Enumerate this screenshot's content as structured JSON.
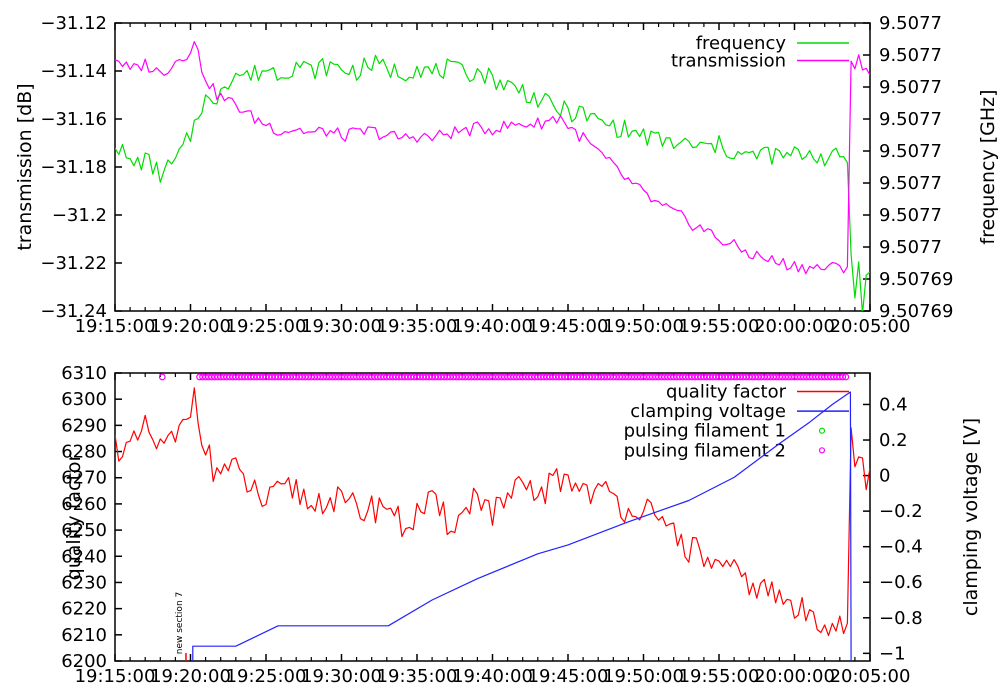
{
  "figure": {
    "background": "#ffffff"
  },
  "colors": {
    "frequency": "#00dd00",
    "transmission": "#ff00ff",
    "quality_factor": "#ff0000",
    "clamping_voltage": "#2222ff",
    "pulsing_filament_1": "#00dd00",
    "pulsing_filament_2": "#ff00ff",
    "axis": "#000000",
    "annotation_tick": "#ff0000"
  },
  "x_axis": {
    "tick_labels": [
      "19:15:00",
      "19:20:00",
      "19:25:00",
      "19:30:00",
      "19:35:00",
      "19:40:00",
      "19:45:00",
      "19:50:00",
      "19:55:00",
      "20:00:00",
      "20:05:00"
    ],
    "range_minutes": [
      0,
      50
    ],
    "major_tick_every_minutes": 5,
    "minor_tick_every_minutes": 1
  },
  "chart_data": [
    {
      "type": "line",
      "ylabel": "transmission [dB]",
      "y2label": "frequency [GHz]",
      "ylim": [
        -31.24,
        -31.12
      ],
      "ytick_labels": [
        "−31.12",
        "−31.14",
        "−31.16",
        "−31.18",
        "−31.2",
        "−31.22",
        "−31.24"
      ],
      "y2tick_labels": [
        "9.5077",
        "9.5077",
        "9.5077",
        "9.5077",
        "9.5077",
        "9.5077",
        "9.5077",
        "9.5077",
        "9.50769",
        "9.50769"
      ],
      "grid": false,
      "legend_position": "top-right-inside",
      "legend": [
        {
          "label": "frequency",
          "style": "line",
          "color": "#00dd00"
        },
        {
          "label": "transmission",
          "style": "line",
          "color": "#ff00ff"
        }
      ],
      "series": [
        {
          "name": "frequency",
          "color": "#00dd00",
          "axis": "y1",
          "note": "plotted against right frequency axis; anchor values given on the left dB scale position it occupies",
          "noise": 0.0042,
          "seed": 7,
          "anchors": [
            [
              0,
              -31.169
            ],
            [
              1,
              -31.179
            ],
            [
              2,
              -31.177
            ],
            [
              3,
              -31.183
            ],
            [
              4,
              -31.178
            ],
            [
              5,
              -31.167
            ],
            [
              5.5,
              -31.157
            ],
            [
              6,
              -31.151
            ],
            [
              6.5,
              -31.156
            ],
            [
              7,
              -31.146
            ],
            [
              8,
              -31.141
            ],
            [
              9,
              -31.142
            ],
            [
              10,
              -31.139
            ],
            [
              11,
              -31.141
            ],
            [
              12,
              -31.137
            ],
            [
              13,
              -31.14
            ],
            [
              14,
              -31.138
            ],
            [
              15,
              -31.139
            ],
            [
              16,
              -31.14
            ],
            [
              17,
              -31.137
            ],
            [
              18,
              -31.139
            ],
            [
              19,
              -31.141
            ],
            [
              20,
              -31.138
            ],
            [
              21,
              -31.141
            ],
            [
              22,
              -31.139
            ],
            [
              23,
              -31.141
            ],
            [
              24,
              -31.14
            ],
            [
              25,
              -31.143
            ],
            [
              26,
              -31.146
            ],
            [
              27,
              -31.148
            ],
            [
              28,
              -31.152
            ],
            [
              29,
              -31.155
            ],
            [
              30,
              -31.157
            ],
            [
              31,
              -31.158
            ],
            [
              32,
              -31.161
            ],
            [
              33,
              -31.163
            ],
            [
              34,
              -31.165
            ],
            [
              35,
              -31.167
            ],
            [
              36,
              -31.169
            ],
            [
              37,
              -31.17
            ],
            [
              38,
              -31.171
            ],
            [
              39,
              -31.172
            ],
            [
              40,
              -31.171
            ],
            [
              41,
              -31.174
            ],
            [
              42,
              -31.176
            ],
            [
              43,
              -31.174
            ],
            [
              44,
              -31.176
            ],
            [
              45,
              -31.175
            ],
            [
              46,
              -31.174
            ],
            [
              47,
              -31.176
            ],
            [
              48,
              -31.176
            ],
            [
              48.6,
              -31.177
            ],
            [
              48.8,
              -31.228
            ],
            [
              49,
              -31.236
            ],
            [
              49.2,
              -31.214
            ],
            [
              49.5,
              -31.237
            ],
            [
              49.7,
              -31.222
            ],
            [
              50,
              -31.226
            ]
          ]
        },
        {
          "name": "transmission",
          "color": "#ff00ff",
          "axis": "y1",
          "noise": 0.0028,
          "seed": 3,
          "anchors": [
            [
              0,
              -31.134
            ],
            [
              1,
              -31.14
            ],
            [
              2,
              -31.137
            ],
            [
              3,
              -31.141
            ],
            [
              4,
              -31.136
            ],
            [
              4.7,
              -31.133
            ],
            [
              5.3,
              -31.128
            ],
            [
              5.8,
              -31.14
            ],
            [
              6.5,
              -31.148
            ],
            [
              7,
              -31.151
            ],
            [
              8,
              -31.154
            ],
            [
              9,
              -31.159
            ],
            [
              10,
              -31.162
            ],
            [
              11,
              -31.165
            ],
            [
              12,
              -31.164
            ],
            [
              13,
              -31.166
            ],
            [
              14,
              -31.165
            ],
            [
              15,
              -31.167
            ],
            [
              16,
              -31.166
            ],
            [
              17,
              -31.165
            ],
            [
              18,
              -31.167
            ],
            [
              19,
              -31.168
            ],
            [
              20,
              -31.167
            ],
            [
              21,
              -31.168
            ],
            [
              22,
              -31.166
            ],
            [
              23,
              -31.165
            ],
            [
              24,
              -31.164
            ],
            [
              25,
              -31.164
            ],
            [
              26,
              -31.163
            ],
            [
              27,
              -31.162
            ],
            [
              28,
              -31.162
            ],
            [
              29,
              -31.16
            ],
            [
              29.6,
              -31.159
            ],
            [
              30,
              -31.163
            ],
            [
              31,
              -31.168
            ],
            [
              32,
              -31.174
            ],
            [
              33,
              -31.18
            ],
            [
              34,
              -31.186
            ],
            [
              35,
              -31.191
            ],
            [
              36,
              -31.196
            ],
            [
              37,
              -31.199
            ],
            [
              38,
              -31.203
            ],
            [
              39,
              -31.206
            ],
            [
              40,
              -31.21
            ],
            [
              41,
              -31.213
            ],
            [
              42,
              -31.216
            ],
            [
              43,
              -31.218
            ],
            [
              44,
              -31.22
            ],
            [
              45,
              -31.221
            ],
            [
              46,
              -31.222
            ],
            [
              47,
              -31.222
            ],
            [
              48,
              -31.222
            ],
            [
              48.55,
              -31.221
            ],
            [
              48.65,
              -31.134
            ],
            [
              49,
              -31.138
            ],
            [
              49.3,
              -31.135
            ],
            [
              49.6,
              -31.141
            ],
            [
              50,
              -31.139
            ]
          ]
        }
      ]
    },
    {
      "type": "line",
      "ylabel": "quality factor",
      "y2label": "clamping voltage [V]",
      "ylim": [
        6200,
        6310
      ],
      "ytick_labels": [
        "6310",
        "6300",
        "6290",
        "6280",
        "6270",
        "6260",
        "6250",
        "6240",
        "6230",
        "6220",
        "6210",
        "6200"
      ],
      "y2lim": [
        -1.043,
        0.577
      ],
      "y2ticks": [
        0.4,
        0.2,
        0,
        -0.2,
        -0.4,
        -0.6,
        -0.8,
        -1
      ],
      "y2tick_labels": [
        "0.4",
        "0.2",
        "0",
        "−0.2",
        "−0.4",
        "−0.6",
        "−0.8",
        "−1"
      ],
      "grid": false,
      "legend_position": "top-right-inside",
      "legend": [
        {
          "label": "quality factor",
          "style": "line",
          "color": "#ff0000"
        },
        {
          "label": "clamping voltage",
          "style": "line",
          "color": "#2222ff"
        },
        {
          "label": "pulsing filament 1",
          "style": "point",
          "color": "#00dd00"
        },
        {
          "label": "pulsing filament 2",
          "style": "point",
          "color": "#ff00ff"
        }
      ],
      "series": [
        {
          "name": "quality factor",
          "color": "#ff0000",
          "axis": "y1",
          "noise": 6,
          "seed": 11,
          "anchors": [
            [
              0,
              6283
            ],
            [
              1,
              6280
            ],
            [
              2,
              6288
            ],
            [
              3,
              6281
            ],
            [
              4,
              6284
            ],
            [
              4.8,
              6292
            ],
            [
              5.3,
              6304
            ],
            [
              5.8,
              6286
            ],
            [
              6.5,
              6272
            ],
            [
              7,
              6274
            ],
            [
              8,
              6272
            ],
            [
              9,
              6266
            ],
            [
              10,
              6260
            ],
            [
              11,
              6264
            ],
            [
              12,
              6266
            ],
            [
              13,
              6259
            ],
            [
              14,
              6263
            ],
            [
              15,
              6260
            ],
            [
              16,
              6258
            ],
            [
              17,
              6258
            ],
            [
              18,
              6261
            ],
            [
              19,
              6251
            ],
            [
              20,
              6256
            ],
            [
              21,
              6260
            ],
            [
              22,
              6253
            ],
            [
              23,
              6255
            ],
            [
              24,
              6265
            ],
            [
              25,
              6256
            ],
            [
              26,
              6261
            ],
            [
              27,
              6266
            ],
            [
              28,
              6263
            ],
            [
              29,
              6268
            ],
            [
              30,
              6270
            ],
            [
              31,
              6266
            ],
            [
              32,
              6265
            ],
            [
              33,
              6262
            ],
            [
              34,
              6258
            ],
            [
              35,
              6260
            ],
            [
              36,
              6250
            ],
            [
              37,
              6250
            ],
            [
              38,
              6243
            ],
            [
              39,
              6240
            ],
            [
              40,
              6235
            ],
            [
              41,
              6233
            ],
            [
              42,
              6230
            ],
            [
              43,
              6227
            ],
            [
              44,
              6224
            ],
            [
              45,
              6220
            ],
            [
              46,
              6217
            ],
            [
              47,
              6216
            ],
            [
              48,
              6214
            ],
            [
              48.6,
              6215
            ],
            [
              48.75,
              6284
            ],
            [
              49,
              6272
            ],
            [
              49.3,
              6281
            ],
            [
              49.6,
              6268
            ],
            [
              50,
              6272
            ]
          ]
        },
        {
          "name": "clamping voltage",
          "color": "#2222ff",
          "axis": "y2",
          "points": [
            [
              5.15,
              -1.06
            ],
            [
              5.15,
              -0.96
            ],
            [
              8,
              -0.96
            ],
            [
              10.8,
              -0.845
            ],
            [
              18.1,
              -0.845
            ],
            [
              21,
              -0.7
            ],
            [
              24,
              -0.58
            ],
            [
              28,
              -0.44
            ],
            [
              30,
              -0.39
            ],
            [
              34,
              -0.26
            ],
            [
              38,
              -0.14
            ],
            [
              41,
              -0.01
            ],
            [
              44,
              0.18
            ],
            [
              46,
              0.3
            ],
            [
              47.5,
              0.4
            ],
            [
              48.7,
              0.47
            ],
            [
              48.75,
              -1.06
            ]
          ]
        },
        {
          "name": "pulsing filament 1",
          "color": "#00dd00",
          "axis": "y1",
          "type": "scatter",
          "marker": "open-circle",
          "points": []
        },
        {
          "name": "pulsing filament 2",
          "color": "#ff00ff",
          "axis": "y1",
          "type": "scatter",
          "marker": "open-circle",
          "row": {
            "t_start": 5.6,
            "t_end": 48.4,
            "step": 0.2,
            "value": 6308.5
          },
          "points": [
            [
              3.13,
              6308.5
            ]
          ]
        }
      ],
      "annotations": [
        {
          "text": "new section 7",
          "t_minutes": 4.64,
          "position": "above-x-axis",
          "tick_color": "#ff0000"
        }
      ]
    }
  ]
}
